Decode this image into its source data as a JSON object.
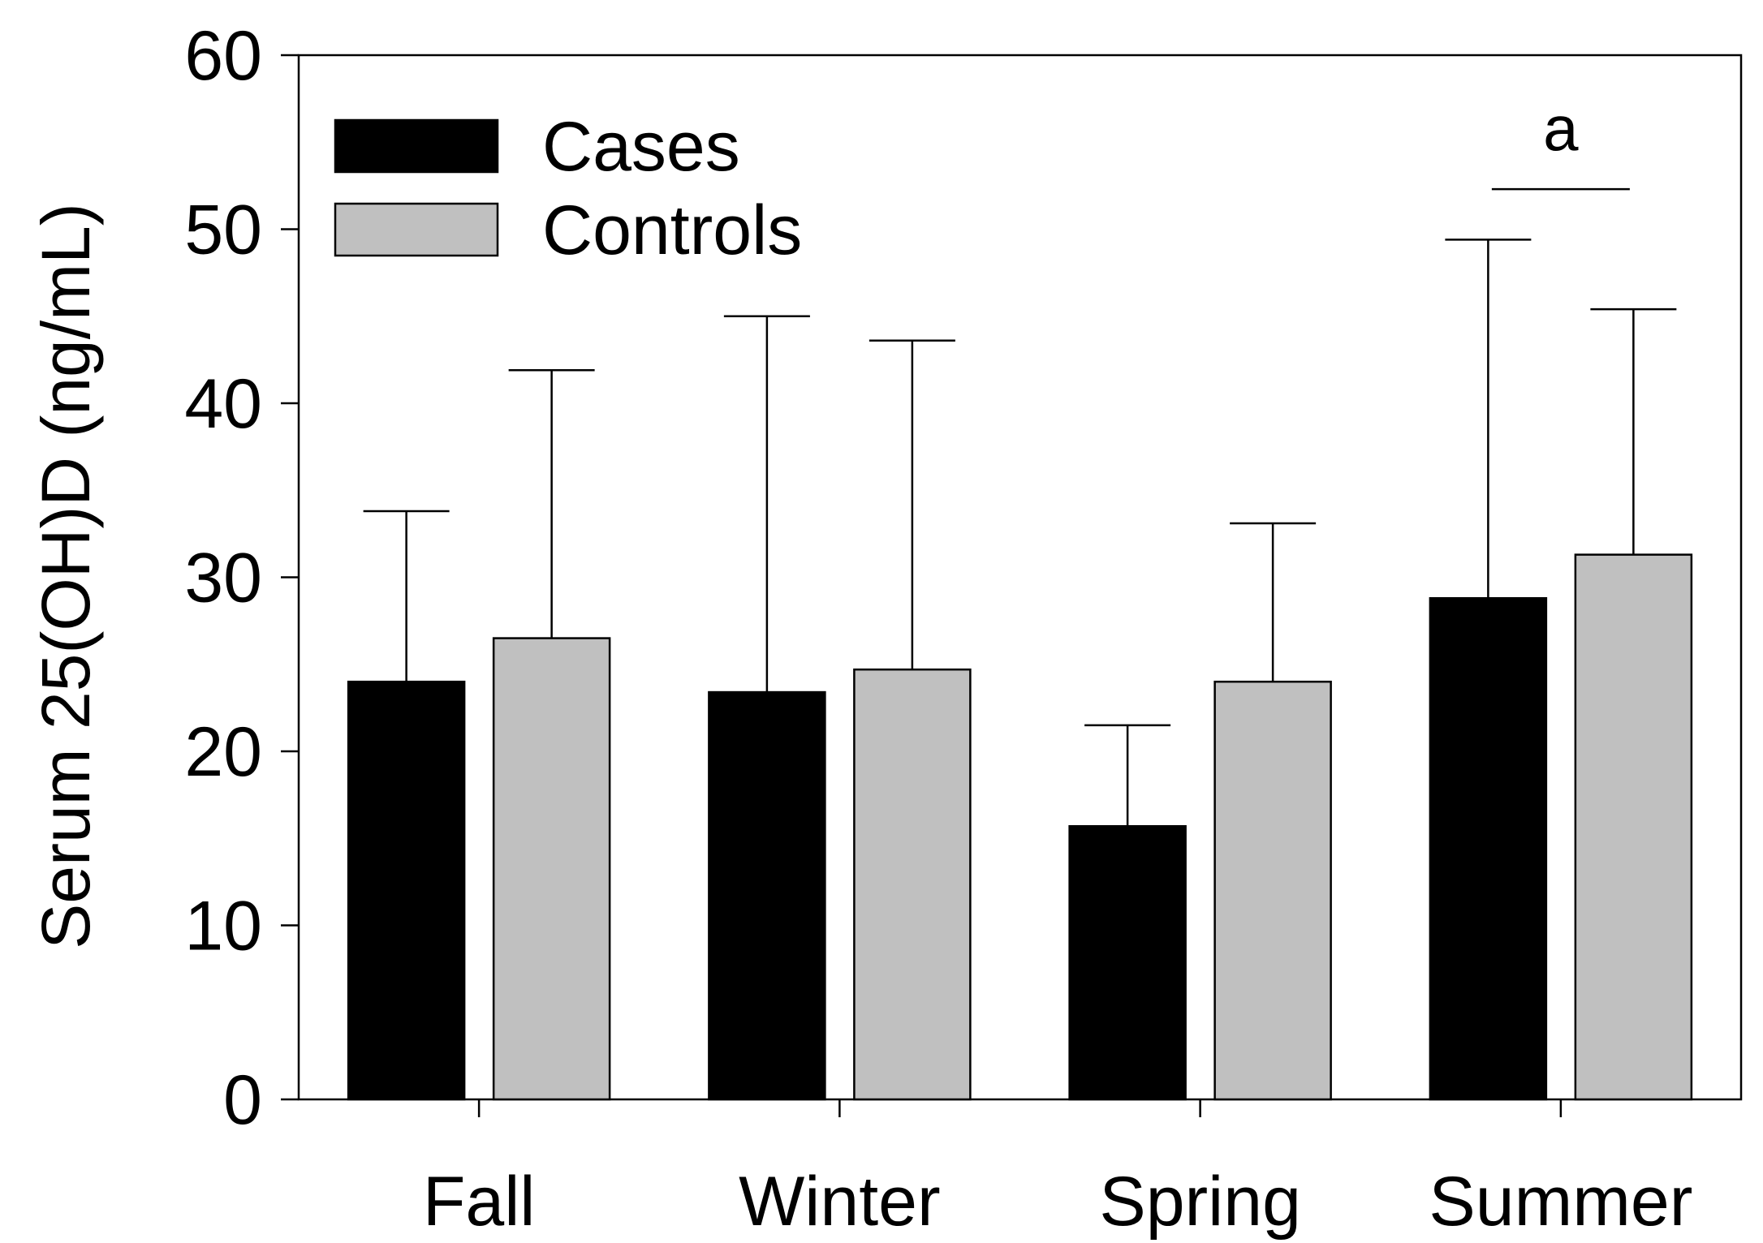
{
  "chart_data": {
    "type": "bar",
    "title": "",
    "xlabel": "",
    "ylabel": "Serum 25(OH)D (ng/mL)",
    "ylim": [
      0,
      60
    ],
    "yticks": [
      0,
      10,
      20,
      30,
      40,
      50,
      60
    ],
    "categories": [
      "Fall",
      "Winter",
      "Spring",
      "Summer"
    ],
    "series": [
      {
        "name": "Cases",
        "color": "#000000",
        "values": [
          24.0,
          23.4,
          15.7,
          28.8
        ],
        "error_upper": [
          33.8,
          45.0,
          21.5,
          49.4
        ]
      },
      {
        "name": "Controls",
        "color": "#c0c0c0",
        "values": [
          26.5,
          24.7,
          24.0,
          31.3
        ],
        "error_upper": [
          41.9,
          43.6,
          33.1,
          45.4
        ]
      }
    ],
    "legend": {
      "position": "top-left",
      "entries": [
        "Cases",
        "Controls"
      ]
    },
    "annotations": [
      {
        "text": "a",
        "category": "Summer",
        "y": 52.3
      }
    ],
    "grid": false
  }
}
